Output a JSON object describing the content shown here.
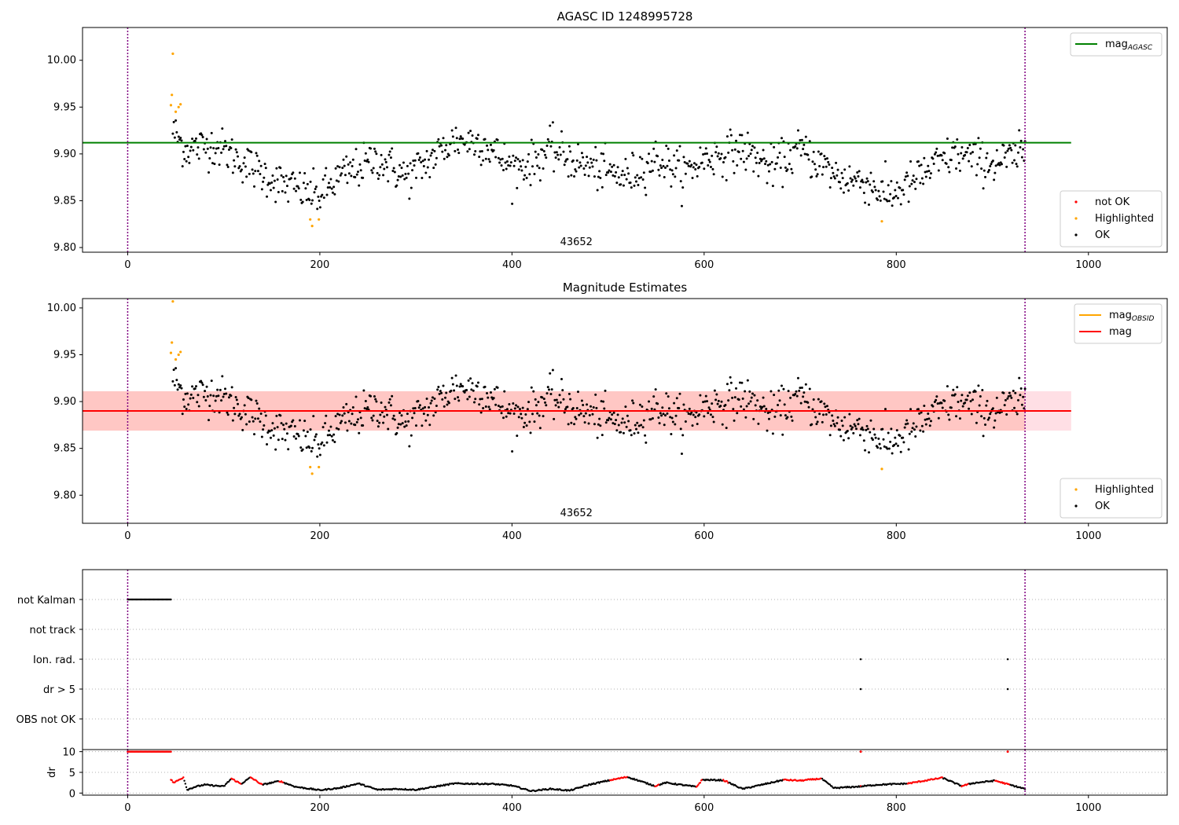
{
  "chart_data": [
    {
      "type": "scatter",
      "title": "AGASC ID 1248995728",
      "xlim": [
        -47,
        1082
      ],
      "ylim": [
        9.795,
        10.035
      ],
      "x_ticks": [
        0,
        200,
        400,
        600,
        800,
        1000
      ],
      "y_ticks": [
        9.8,
        9.85,
        9.9,
        9.95,
        10.0
      ],
      "grid": false,
      "annotation": {
        "text": "43652",
        "x": 467
      },
      "obsid_boundaries": [
        0,
        934
      ],
      "lines": [
        {
          "name": "mag_AGASC",
          "value": 9.912,
          "x_range": [
            -47,
            982
          ],
          "color": "#008000"
        }
      ],
      "legends": [
        {
          "placement": "top-right",
          "entries": [
            {
              "label": "mag",
              "sub": "AGASC",
              "marker": "line",
              "color": "#008000"
            }
          ]
        },
        {
          "placement": "bottom-right",
          "entries": [
            {
              "label": "not OK",
              "marker": "dot",
              "color": "#ff0000"
            },
            {
              "label": "Highlighted",
              "marker": "dot",
              "color": "#ffa500"
            },
            {
              "label": "OK",
              "marker": "dot",
              "color": "#000000"
            }
          ]
        }
      ],
      "series": [
        {
          "name": "Highlighted",
          "color": "#ffa500",
          "x": [
            45,
            46,
            47,
            50,
            53,
            55,
            190,
            192,
            199,
            785
          ],
          "y": [
            9.952,
            9.963,
            10.007,
            9.945,
            9.95,
            9.953,
            9.83,
            9.823,
            9.83,
            9.828
          ]
        },
        {
          "name": "OK",
          "color": "#000000",
          "trend": {
            "x": [
              47,
              60,
              90,
              130,
              160,
              190,
              200,
              220,
              260,
              290,
              310,
              340,
              370,
              400,
              420,
              440,
              470,
              500,
              520,
              550,
              580,
              600,
              640,
              670,
              700,
              740,
              770,
              790,
              810,
              830,
              860,
              900,
              934
            ],
            "y": [
              9.925,
              9.905,
              9.91,
              9.885,
              9.868,
              9.858,
              9.855,
              9.875,
              9.895,
              9.875,
              9.89,
              9.915,
              9.912,
              9.885,
              9.89,
              9.905,
              9.89,
              9.88,
              9.875,
              9.895,
              9.88,
              9.895,
              9.905,
              9.885,
              9.905,
              9.875,
              9.87,
              9.855,
              9.865,
              9.88,
              9.9,
              9.89,
              9.9
            ]
          },
          "count": 880,
          "x_range": [
            47,
            934
          ]
        }
      ]
    },
    {
      "type": "scatter",
      "title": "Magnitude Estimates",
      "xlim": [
        -47,
        1082
      ],
      "ylim": [
        9.77,
        10.01
      ],
      "x_ticks": [
        0,
        200,
        400,
        600,
        800,
        1000
      ],
      "y_ticks": [
        9.8,
        9.85,
        9.9,
        9.95,
        10.0
      ],
      "grid": false,
      "annotation": {
        "text": "43652",
        "x": 467
      },
      "obsid_boundaries": [
        0,
        934
      ],
      "lines": [
        {
          "name": "mag_OBSID",
          "value": 9.89,
          "x_range": [
            -47,
            934
          ],
          "color": "#ffa500",
          "band": [
            9.869,
            9.911
          ],
          "band_color": "#ffa07a"
        },
        {
          "name": "mag",
          "value": 9.89,
          "x_range": [
            -47,
            982
          ],
          "color": "#ff0000",
          "band": [
            9.869,
            9.911
          ],
          "band_color": "#ffc0cb"
        }
      ],
      "legends": [
        {
          "placement": "top-right",
          "entries": [
            {
              "label": "mag",
              "sub": "OBSID",
              "marker": "line",
              "color": "#ffa500"
            },
            {
              "label": "mag",
              "marker": "line",
              "color": "#ff0000"
            }
          ]
        },
        {
          "placement": "bottom-right",
          "entries": [
            {
              "label": "Highlighted",
              "marker": "dot",
              "color": "#ffa500"
            },
            {
              "label": "OK",
              "marker": "dot",
              "color": "#000000"
            }
          ]
        }
      ]
    },
    {
      "type": "scatter",
      "categories": [
        "not Kalman",
        "not track",
        "Ion. rad.",
        "dr > 5",
        "OBS not OK"
      ],
      "xlim": [
        -47,
        1082
      ],
      "x_ticks": [
        0,
        200,
        400,
        600,
        800,
        1000
      ],
      "grid": true,
      "obsid_boundaries": [
        0,
        934
      ],
      "flags": [
        {
          "category": "not Kalman",
          "x_range": [
            0,
            45
          ]
        },
        {
          "category": "Ion. rad.",
          "x": [
            763,
            916
          ]
        },
        {
          "category": "dr > 5",
          "x": [
            763,
            916
          ]
        }
      ]
    },
    {
      "type": "line",
      "ylabel": "dr",
      "xlim": [
        -47,
        1082
      ],
      "ylim": [
        -0.5,
        10.5
      ],
      "y_ticks": [
        0,
        5,
        10
      ],
      "x_ticks": [
        0,
        200,
        400,
        600,
        800,
        1000
      ],
      "x_tick_labels": [
        "0",
        "200",
        "400",
        "600",
        "800",
        "1000"
      ],
      "grid": true,
      "obsid_boundaries": [
        0,
        934
      ],
      "red_x_ranges": [
        [
          0,
          45
        ],
        [
          45,
          58
        ],
        [
          108,
          118
        ],
        [
          128,
          140
        ],
        [
          158,
          162
        ],
        [
          502,
          520
        ],
        [
          549,
          553
        ],
        [
          592,
          598
        ],
        [
          620,
          625
        ],
        [
          683,
          722
        ],
        [
          763,
          763
        ],
        [
          812,
          848
        ],
        [
          868,
          875
        ],
        [
          903,
          918
        ]
      ],
      "series": [
        {
          "x": [
            0,
            45
          ],
          "y": [
            10,
            10
          ]
        },
        {
          "x": [
            45,
            48,
            52,
            58,
            62,
            70,
            80,
            100,
            108,
            118,
            128,
            140,
            158,
            175,
            200,
            220,
            240,
            260,
            280,
            300,
            340,
            380,
            400,
            420,
            440,
            460,
            480,
            502,
            520,
            549,
            560,
            592,
            598,
            620,
            640,
            660,
            683,
            700,
            722,
            735,
            763,
            780,
            812,
            848,
            868,
            880,
            903,
            918,
            934
          ],
          "y": [
            3.2,
            2.5,
            3.0,
            3.8,
            0.8,
            1.5,
            2.0,
            1.6,
            3.5,
            2.2,
            3.8,
            2.0,
            2.9,
            1.5,
            0.7,
            1.2,
            2.3,
            0.8,
            1.0,
            0.8,
            2.3,
            2.2,
            1.8,
            0.5,
            1.0,
            0.6,
            2.0,
            3.1,
            3.9,
            1.7,
            2.5,
            1.5,
            3.2,
            3.1,
            1.0,
            2.0,
            3.2,
            3.0,
            3.5,
            1.2,
            1.6,
            2.0,
            2.3,
            3.7,
            1.7,
            2.4,
            3.0,
            2.0,
            1.0
          ]
        }
      ]
    }
  ]
}
